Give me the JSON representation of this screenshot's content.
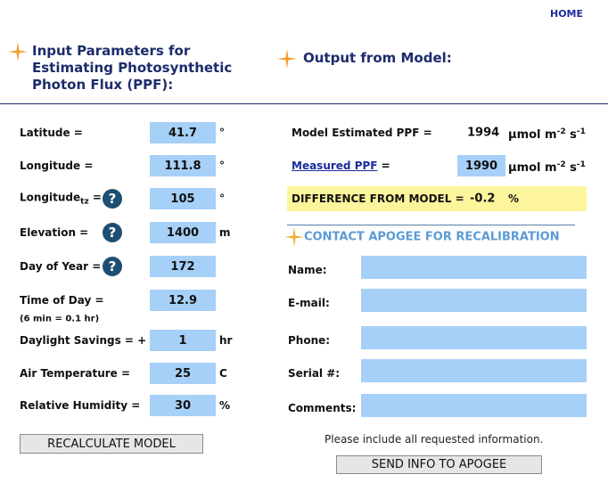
{
  "nav": {
    "home": "HOME"
  },
  "input_panel": {
    "title": [
      "Input Parameters for",
      "Estimating Photosynthetic",
      "Photon Flux (PPF):"
    ],
    "rows": [
      {
        "label": "Latitude =",
        "value": 41.7,
        "unit": "°"
      },
      {
        "label": "Longitude =",
        "value": 111.8,
        "unit": "°"
      },
      {
        "label": "Longitude",
        "label_sub": "tz",
        "label_suffix": "=",
        "value": 105,
        "unit": "°"
      },
      {
        "label": "Elevation =",
        "value": 1400,
        "unit": "m"
      },
      {
        "label": "Day of Year =",
        "value": 172
      },
      {
        "label": "Time of Day =",
        "note": "(6 min = 0.1 hr)",
        "value": 12.9
      },
      {
        "label": "Daylight Savings = +",
        "value": 1,
        "unit": "hr"
      },
      {
        "label": "Air Temperature =",
        "value": 25,
        "unit": "C"
      },
      {
        "label": "Relative Humidity =",
        "value": 30,
        "unit": "%"
      }
    ],
    "help_icon": "?",
    "button": "RECALCULATE MODEL"
  },
  "output_panel": {
    "title": "Output from Model:",
    "estimated": {
      "label": "Model Estimated PPF =",
      "value": 1994,
      "unit": [
        "µmol m",
        "-2",
        " s",
        "-1"
      ]
    },
    "measured": {
      "label": "Measured PPF",
      "label_suffix": "=",
      "value": 1990,
      "unit": [
        "µmol m",
        "-2",
        " s",
        "-1"
      ]
    },
    "difference": {
      "label": "DIFFERENCE FROM MODEL =",
      "value": -0.2,
      "unit": "%"
    }
  },
  "contact": {
    "title": "CONTACT APOGEE FOR RECALIBRATION",
    "fields": [
      "Name:",
      "E-mail:",
      "Phone:",
      "Serial #:",
      "Comments:"
    ],
    "note": "Please include all requested information.",
    "button": "SEND INFO TO APOGEE"
  }
}
